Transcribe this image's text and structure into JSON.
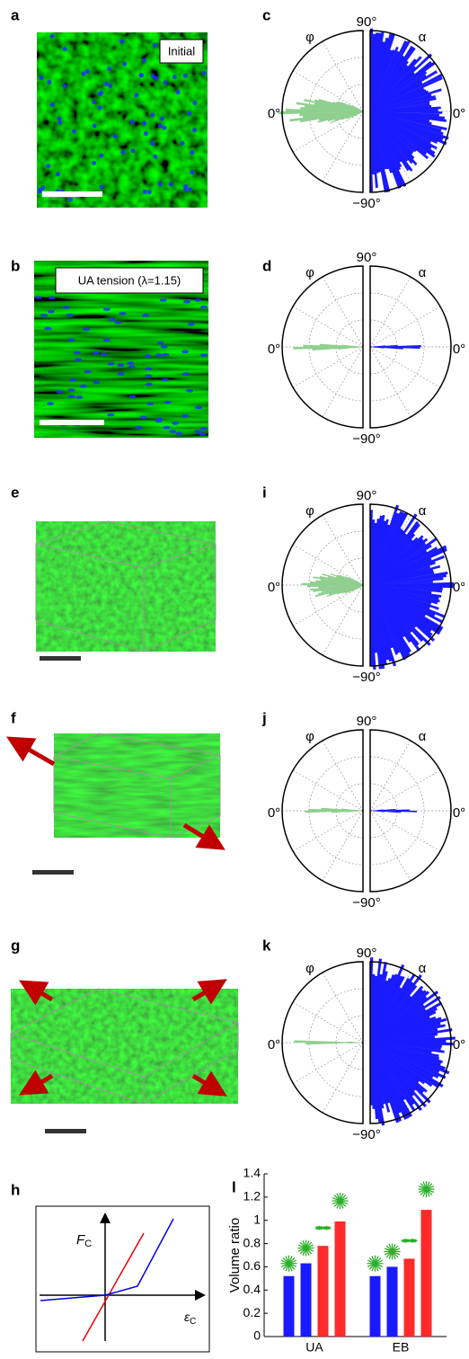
{
  "panels": {
    "a": {
      "label": "a",
      "text": "Initial"
    },
    "b": {
      "label": "b",
      "text": "UA tension (λ=1.15)"
    },
    "c": {
      "label": "c"
    },
    "d": {
      "label": "d"
    },
    "e": {
      "label": "e"
    },
    "f": {
      "label": "f"
    },
    "g": {
      "label": "g"
    },
    "h": {
      "label": "h"
    },
    "i": {
      "label": "i"
    },
    "j": {
      "label": "j"
    },
    "k": {
      "label": "k"
    },
    "l": {
      "label": "l"
    }
  },
  "polar": [
    {
      "left": "φ",
      "right": "α",
      "top": "90°",
      "left_zero": "0°",
      "right_zero": "0°",
      "bottom": "−90°"
    },
    {
      "left": "φ",
      "right": "α",
      "top": "90°",
      "left_zero": "0°",
      "right_zero": "0°",
      "bottom": "−90°"
    },
    {
      "left": "φ",
      "right": "α",
      "top": "90°",
      "left_zero": "0°",
      "right_zero": "0°",
      "bottom": "−90°"
    },
    {
      "left": "φ",
      "right": "α",
      "top": "90°",
      "left_zero": "0°",
      "right_zero": "0°",
      "bottom": "−90°"
    },
    {
      "left": "φ",
      "right": "α",
      "top": "90°",
      "left_zero": "0°",
      "right_zero": "0°",
      "bottom": "−90°"
    }
  ],
  "h": {
    "y_main": "F",
    "y_sub": "C",
    "x_main": "ε",
    "x_sub": "C"
  },
  "chart_data": {
    "type": "bar",
    "ylabel": "Volume ratio",
    "categories": [
      "UA",
      "EB"
    ],
    "series": [
      {
        "color": "#1a1aff",
        "values": [
          0.52,
          0.52
        ]
      },
      {
        "color": "#1a1aff",
        "values": [
          0.63,
          0.6
        ]
      },
      {
        "color": "#ff2a2a",
        "values": [
          0.78,
          0.67
        ]
      },
      {
        "color": "#ff2a2a",
        "values": [
          0.99,
          1.09
        ]
      }
    ],
    "ylim": [
      0,
      1.4
    ],
    "yticks": [
      0,
      0.2,
      0.4,
      0.6,
      0.8,
      1,
      1.2,
      1.4
    ]
  }
}
